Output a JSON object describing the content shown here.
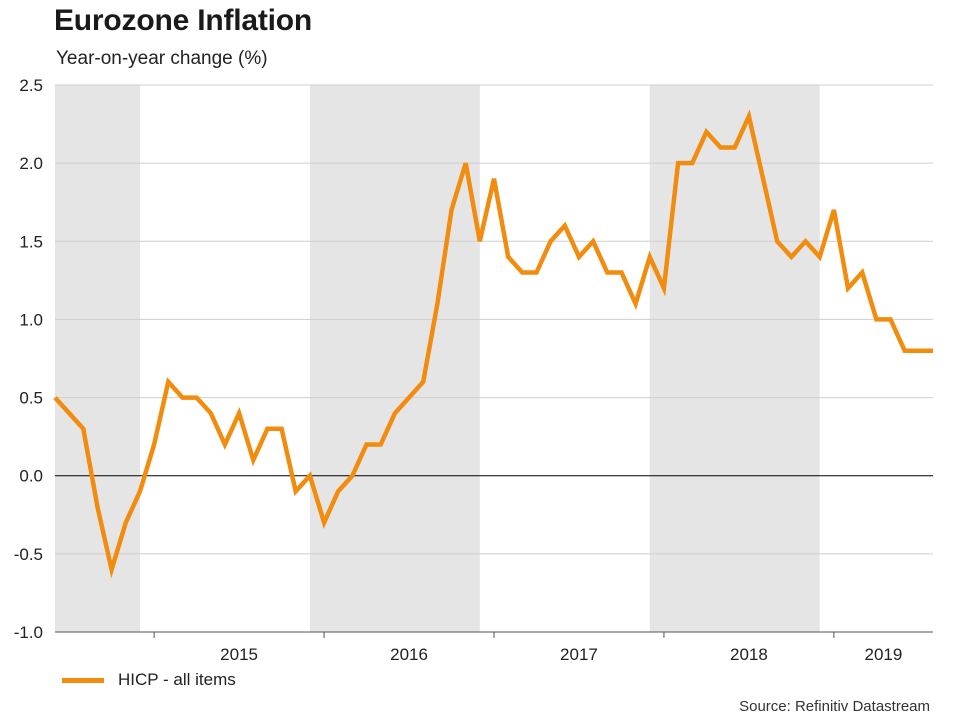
{
  "header": {
    "title": "Eurozone Inflation",
    "subtitle": "Year-on-year change (%)"
  },
  "legend": {
    "label": "HICP - all items",
    "color": "#f28c0f"
  },
  "source": "Source: Refinitiv Datastream",
  "colors": {
    "line": "#f28c0f",
    "band": "#e5e5e5",
    "grid": "#cfcfcf",
    "zero": "#000000"
  },
  "chart_data": {
    "type": "line",
    "title": "Eurozone Inflation",
    "subtitle": "Year-on-year change (%)",
    "ylim": [
      -1.0,
      2.5
    ],
    "yticks": [
      -1.0,
      -0.5,
      0.0,
      0.5,
      1.0,
      1.5,
      2.0,
      2.5
    ],
    "ytick_labels": [
      "-1.0",
      "-0.5",
      "0.0",
      "0.5",
      "1.0",
      "1.5",
      "2.0",
      "2.5"
    ],
    "xlim": [
      "2014-06",
      "2019-08"
    ],
    "year_labels": [
      "2015",
      "2016",
      "2017",
      "2018",
      "2019"
    ],
    "shaded_periods": [
      [
        "2014-06",
        "2014-12"
      ],
      [
        "2015-12",
        "2016-12"
      ],
      [
        "2017-12",
        "2018-12"
      ]
    ],
    "grid": true,
    "legend_position": "bottom-left",
    "series": [
      {
        "name": "HICP - all items",
        "x": [
          "2014-06",
          "2014-07",
          "2014-08",
          "2014-09",
          "2014-10",
          "2014-11",
          "2014-12",
          "2015-01",
          "2015-02",
          "2015-03",
          "2015-04",
          "2015-05",
          "2015-06",
          "2015-07",
          "2015-08",
          "2015-09",
          "2015-10",
          "2015-11",
          "2015-12",
          "2016-01",
          "2016-02",
          "2016-03",
          "2016-04",
          "2016-05",
          "2016-06",
          "2016-07",
          "2016-08",
          "2016-09",
          "2016-10",
          "2016-11",
          "2016-12",
          "2017-01",
          "2017-02",
          "2017-03",
          "2017-04",
          "2017-05",
          "2017-06",
          "2017-07",
          "2017-08",
          "2017-09",
          "2017-10",
          "2017-11",
          "2017-12",
          "2018-01",
          "2018-02",
          "2018-03",
          "2018-04",
          "2018-05",
          "2018-06",
          "2018-07",
          "2018-08",
          "2018-09",
          "2018-10",
          "2018-11",
          "2018-12",
          "2019-01",
          "2019-02",
          "2019-03",
          "2019-04",
          "2019-05",
          "2019-06",
          "2019-07",
          "2019-08"
        ],
        "values": [
          0.5,
          0.4,
          0.3,
          -0.2,
          -0.6,
          -0.3,
          -0.1,
          0.2,
          0.6,
          0.5,
          0.5,
          0.4,
          0.2,
          0.4,
          0.1,
          0.3,
          0.3,
          -0.1,
          0.0,
          -0.3,
          -0.1,
          0.0,
          0.2,
          0.2,
          0.4,
          0.5,
          0.6,
          1.1,
          1.7,
          2.0,
          1.5,
          1.9,
          1.4,
          1.3,
          1.3,
          1.5,
          1.6,
          1.4,
          1.5,
          1.3,
          1.3,
          1.1,
          1.4,
          1.2,
          2.0,
          2.0,
          2.2,
          2.1,
          2.1,
          2.3,
          1.9,
          1.5,
          1.4,
          1.5,
          1.4,
          1.7,
          1.2,
          1.3,
          1.0,
          1.0,
          0.8,
          0.8,
          0.8
        ]
      }
    ]
  }
}
